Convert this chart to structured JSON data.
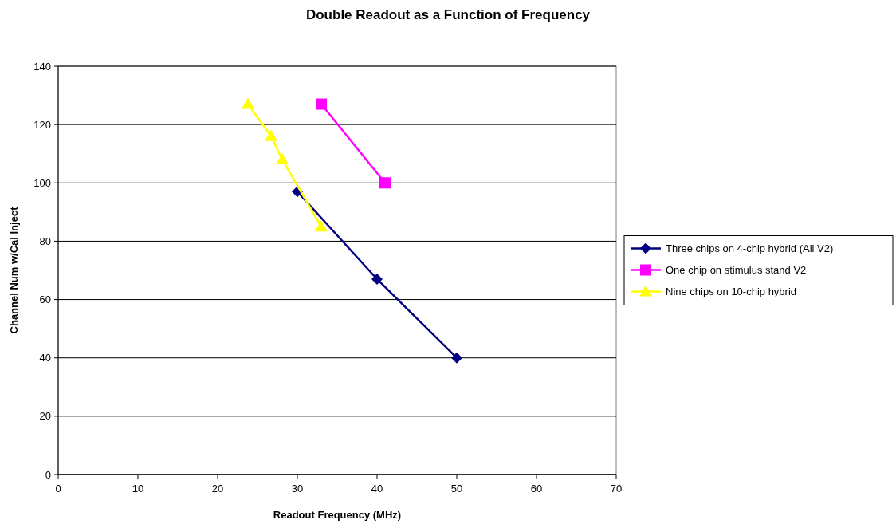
{
  "chart_data": {
    "type": "line",
    "title": "Double Readout as a Function of Frequency",
    "xlabel": "Readout Frequency (MHz)",
    "ylabel": "Channel Num w/Cal Inject",
    "xlim": [
      0,
      70
    ],
    "xticks": [
      0,
      10,
      20,
      30,
      40,
      50,
      60,
      70
    ],
    "ylim": [
      0,
      140
    ],
    "yticks": [
      0,
      20,
      40,
      60,
      80,
      100,
      120,
      140
    ],
    "grid": "y",
    "legend": "right",
    "series": [
      {
        "name": "Three chips on 4-chip hybrid (All V2)",
        "color": "#000080",
        "marker": "diamond",
        "x": [
          30,
          40,
          50
        ],
        "values": [
          97,
          67,
          40
        ]
      },
      {
        "name": "One chip on stimulus stand V2",
        "color": "#ff00ff",
        "marker": "square",
        "x": [
          33,
          41
        ],
        "values": [
          127,
          100
        ]
      },
      {
        "name": "Nine chips on 10-chip hybrid",
        "color": "#ffff00",
        "marker": "triangle",
        "x": [
          23.8,
          26.7,
          28.1,
          33
        ],
        "values": [
          127,
          116,
          108,
          85
        ]
      }
    ]
  }
}
